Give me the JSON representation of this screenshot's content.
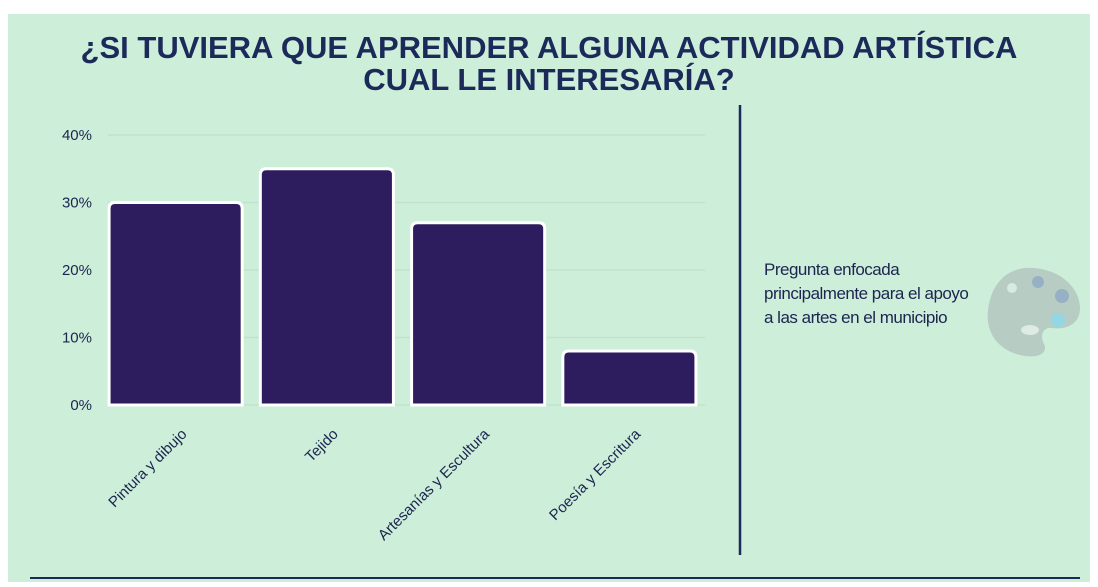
{
  "chart_data": {
    "type": "bar",
    "title": "¿SI TUVIERA QUE APRENDER ALGUNA ACTIVIDAD ARTÍSTICA",
    "subtitle": "CUAL LE INTERESARÍA?",
    "note": "Pregunta enfocada principalmente para el apoyo a las artes en el municipio",
    "categories": [
      "Pintura y dibujo",
      "Tejido",
      "Artesanías y Escultura",
      "Poesía y Escritura"
    ],
    "values": [
      30,
      35,
      27,
      8
    ],
    "color": "#2e1d5e",
    "ylim": [
      0,
      40
    ],
    "yticks": [
      {
        "value": 0,
        "label": "0%"
      },
      {
        "value": 10,
        "label": "10%"
      },
      {
        "value": 20,
        "label": "20%"
      },
      {
        "value": 30,
        "label": "30%"
      },
      {
        "value": 40,
        "label": "40%"
      }
    ],
    "grid": true
  }
}
